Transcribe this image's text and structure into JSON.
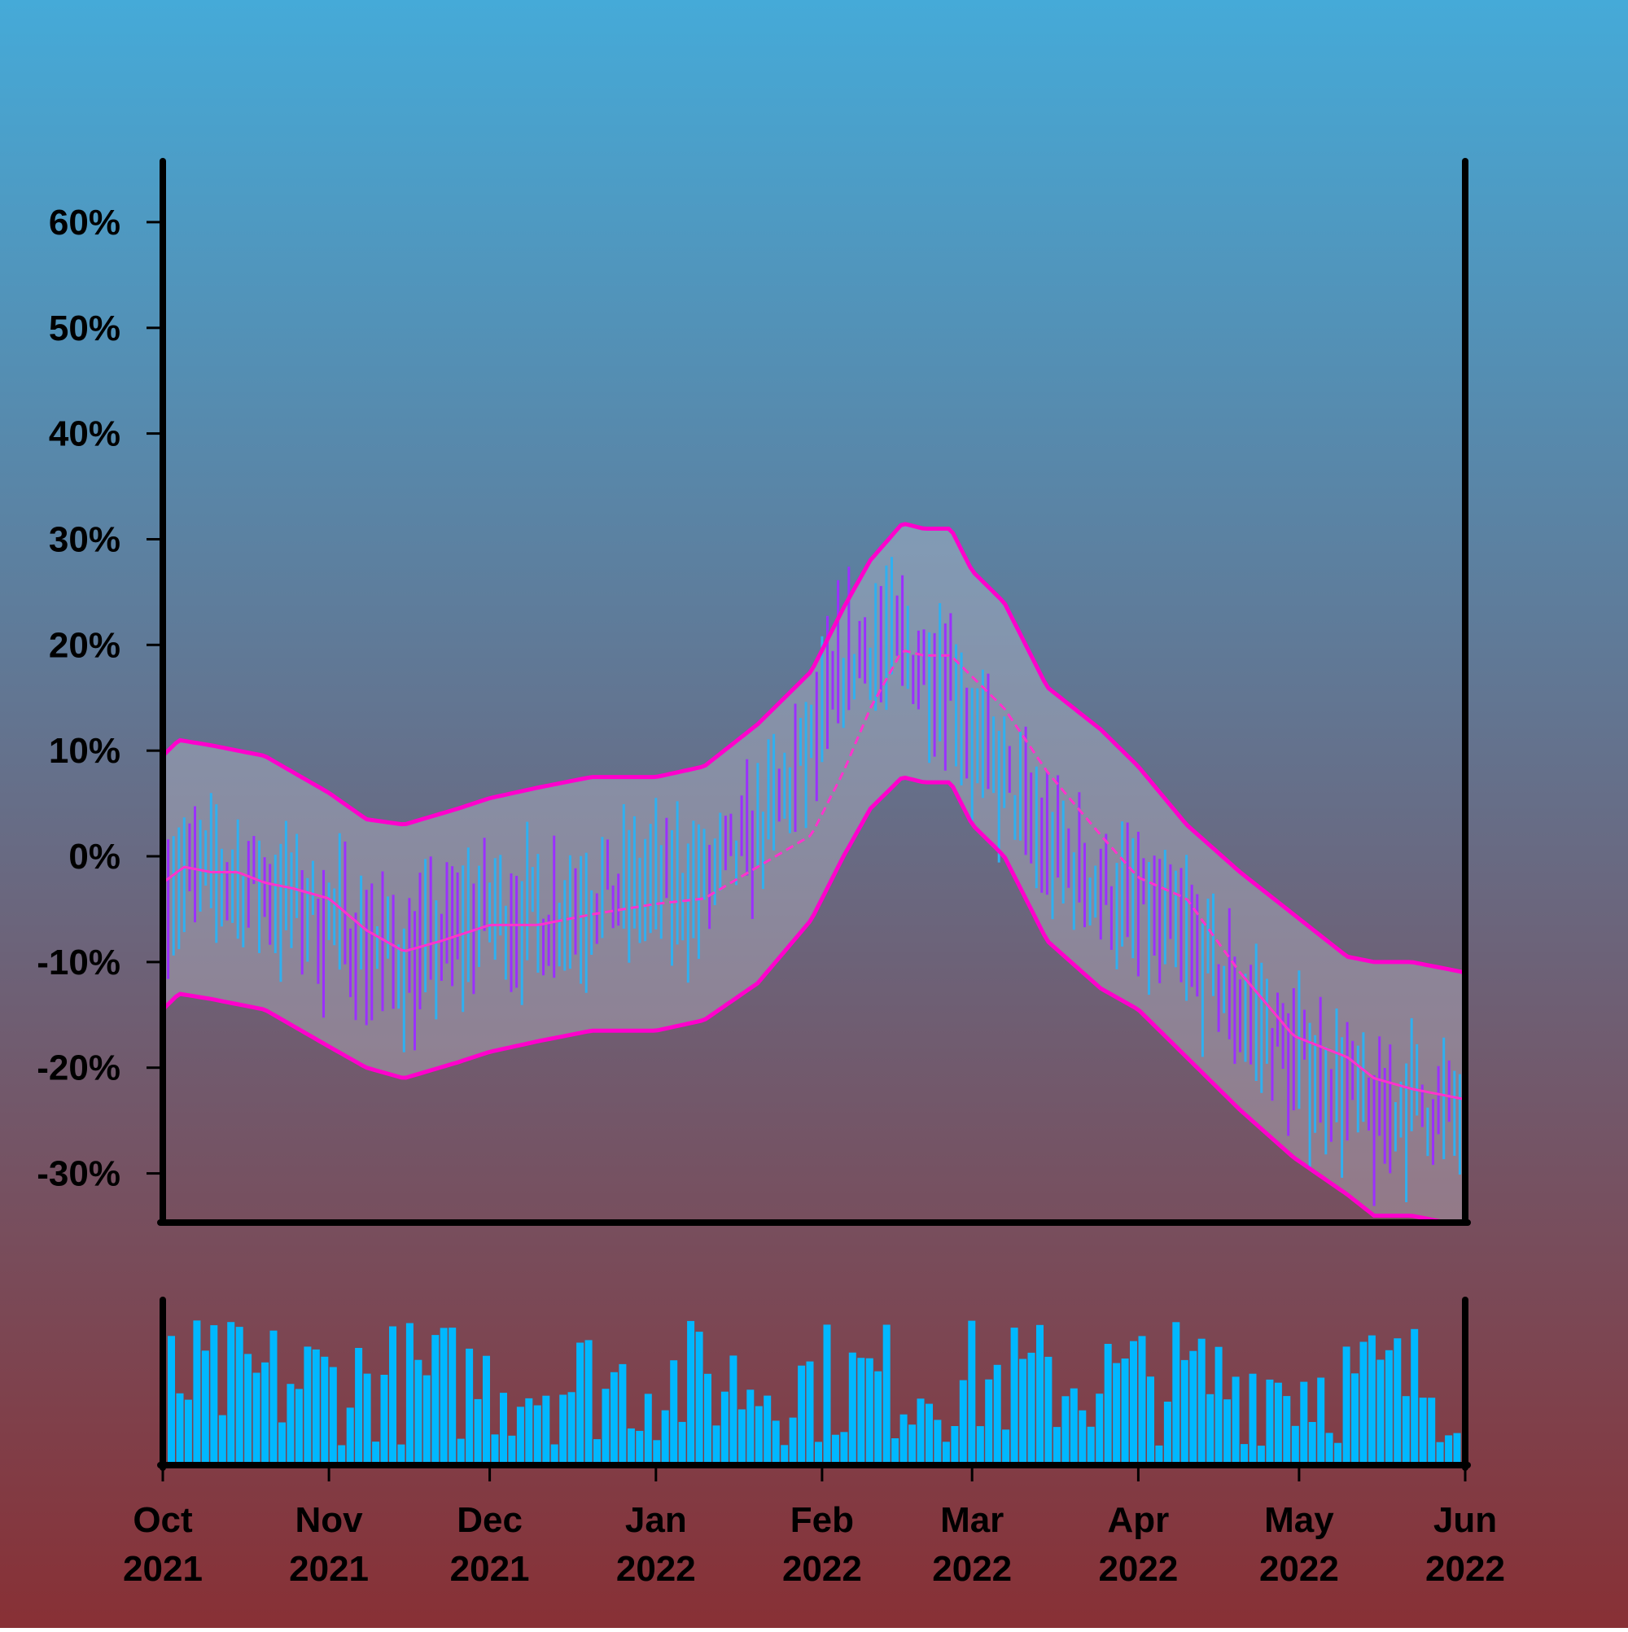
{
  "chart_data": {
    "type": "line",
    "title": "",
    "xlabel": "",
    "ylabel": "",
    "x_range": [
      "2021-10-01",
      "2022-06-01"
    ],
    "y_range": [
      -34.5,
      66
    ],
    "y_tick_labels": [
      "60%",
      "50%",
      "40%",
      "30%",
      "20%",
      "10%",
      "0%",
      "-10%",
      "-20%",
      "-30%"
    ],
    "y_tick_values": [
      60,
      50,
      40,
      30,
      20,
      10,
      0,
      -10,
      -20,
      -30
    ],
    "x_ticks": [
      {
        "date": "2021-10-01",
        "month": "Oct",
        "year": "2021"
      },
      {
        "date": "2021-11-01",
        "month": "Nov",
        "year": "2021"
      },
      {
        "date": "2021-12-01",
        "month": "Dec",
        "year": "2021"
      },
      {
        "date": "2022-01-01",
        "month": "Jan",
        "year": "2022"
      },
      {
        "date": "2022-02-01",
        "month": "Feb",
        "year": "2022"
      },
      {
        "date": "2022-03-01",
        "month": "Mar",
        "year": "2022"
      },
      {
        "date": "2022-04-01",
        "month": "Apr",
        "year": "2022"
      },
      {
        "date": "2022-05-01",
        "month": "May",
        "year": "2022"
      },
      {
        "date": "2022-06-01",
        "month": "Jun",
        "year": "2022"
      }
    ],
    "moving_average": {
      "x": [
        "2021-10-01",
        "2021-10-05",
        "2021-10-10",
        "2021-10-15",
        "2021-10-20",
        "2021-10-25",
        "2021-11-01",
        "2021-11-08",
        "2021-11-15",
        "2021-11-22",
        "2021-12-01",
        "2021-12-10",
        "2021-12-20",
        "2022-01-01",
        "2022-01-10",
        "2022-01-20",
        "2022-01-30",
        "2022-02-05",
        "2022-02-10",
        "2022-02-16",
        "2022-02-20",
        "2022-02-25",
        "2022-03-01",
        "2022-03-07",
        "2022-03-15",
        "2022-03-25",
        "2022-04-01",
        "2022-04-10",
        "2022-04-20",
        "2022-04-30",
        "2022-05-10",
        "2022-05-15",
        "2022-05-22",
        "2022-06-01"
      ],
      "y": [
        -2.5,
        -1,
        -1.5,
        -1.5,
        -2.5,
        -3,
        -4,
        -7,
        -9,
        -8,
        -6.5,
        -6.5,
        -5.5,
        -4.5,
        -4,
        -1,
        2,
        8,
        14,
        19.5,
        19,
        19,
        17,
        14,
        8,
        2,
        -2,
        -4,
        -11,
        -17,
        -19,
        -21,
        -22,
        -23
      ]
    },
    "upper_band": {
      "x": [
        "2021-10-01",
        "2021-10-04",
        "2021-10-10",
        "2021-10-20",
        "2021-11-01",
        "2021-11-08",
        "2021-11-15",
        "2021-11-25",
        "2021-12-01",
        "2021-12-10",
        "2021-12-20",
        "2022-01-01",
        "2022-01-10",
        "2022-01-20",
        "2022-01-30",
        "2022-02-05",
        "2022-02-10",
        "2022-02-16",
        "2022-02-20",
        "2022-02-25",
        "2022-03-01",
        "2022-03-07",
        "2022-03-15",
        "2022-03-25",
        "2022-04-01",
        "2022-04-10",
        "2022-04-20",
        "2022-04-30",
        "2022-05-10",
        "2022-05-15",
        "2022-05-22",
        "2022-06-01"
      ],
      "y": [
        9.5,
        11,
        10.5,
        9.5,
        6,
        3.5,
        3,
        4.5,
        5.5,
        6.5,
        7.5,
        7.5,
        8.5,
        12.5,
        17.5,
        23.5,
        28,
        31.5,
        31,
        31,
        27,
        24,
        16,
        12,
        8.5,
        3,
        -1.5,
        -5.5,
        -9.5,
        -10,
        -10,
        -11
      ]
    },
    "lower_band": {
      "x": [
        "2021-10-01",
        "2021-10-04",
        "2021-10-10",
        "2021-10-20",
        "2021-11-01",
        "2021-11-08",
        "2021-11-15",
        "2021-11-25",
        "2021-12-01",
        "2021-12-10",
        "2021-12-20",
        "2022-01-01",
        "2022-01-10",
        "2022-01-20",
        "2022-01-30",
        "2022-02-05",
        "2022-02-10",
        "2022-02-16",
        "2022-02-20",
        "2022-02-25",
        "2022-03-01",
        "2022-03-07",
        "2022-03-15",
        "2022-03-25",
        "2022-04-01",
        "2022-04-10",
        "2022-04-20",
        "2022-04-30",
        "2022-05-10",
        "2022-05-15",
        "2022-05-22",
        "2022-06-01"
      ],
      "y": [
        -14.5,
        -13,
        -13.5,
        -14.5,
        -18,
        -20,
        -21,
        -19.5,
        -18.5,
        -17.5,
        -16.5,
        -16.5,
        -15.5,
        -12,
        -6,
        0,
        4.5,
        7.5,
        7,
        7,
        3,
        0,
        -8,
        -12.5,
        -14.5,
        -19,
        -24,
        -28.5,
        -32,
        -34,
        -34,
        -35
      ]
    },
    "candles_trend": {
      "x": [
        "2021-10-01",
        "2021-10-10",
        "2021-10-20",
        "2021-11-01",
        "2021-11-08",
        "2021-11-15",
        "2021-11-22",
        "2021-12-01",
        "2021-12-10",
        "2021-12-20",
        "2022-01-01",
        "2022-01-10",
        "2022-01-20",
        "2022-01-30",
        "2022-02-05",
        "2022-02-10",
        "2022-02-16",
        "2022-02-20",
        "2022-02-25",
        "2022-03-01",
        "2022-03-07",
        "2022-03-15",
        "2022-03-25",
        "2022-04-01",
        "2022-04-10",
        "2022-04-20",
        "2022-04-30",
        "2022-05-10",
        "2022-05-15",
        "2022-05-22",
        "2022-06-01"
      ],
      "y": [
        -2,
        -2,
        -3,
        -6,
        -8,
        -10,
        -8,
        -5,
        -6,
        -4,
        -3,
        -3,
        2,
        10,
        18,
        20,
        20,
        18,
        18,
        11,
        7,
        1,
        -3,
        -5,
        -8,
        -14,
        -19,
        -22,
        -25,
        -23,
        -25
      ]
    },
    "volume_bars": {
      "count": 152,
      "range": [
        0,
        1
      ]
    },
    "colors": {
      "background_top": "#45aad8",
      "background_bottom": "#883035",
      "band_fill": "#c8c8d8",
      "band_line": "#ff00cc",
      "ma_line": "#ff33cc",
      "candle_up": "#2fb0f0",
      "candle_down": "#9b30ff",
      "volume": "#00b8ff",
      "axes": "#000000"
    }
  }
}
